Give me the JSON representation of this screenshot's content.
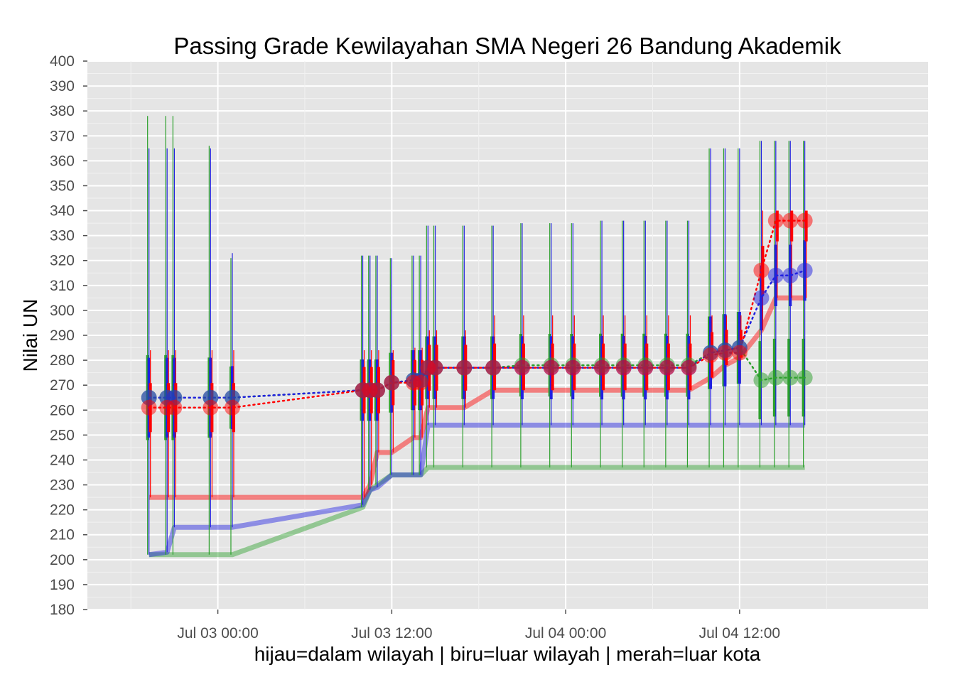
{
  "chart_data": {
    "type": "line",
    "title": "Passing Grade Kewilayahan SMA Negeri 26 Bandung Akademik",
    "xlabel": "hijau=dalam wilayah | biru=luar wilayah | merah=luar kota",
    "ylabel": "Nilai UN",
    "ylim": [
      180,
      400
    ],
    "y_ticks": [
      180,
      190,
      200,
      210,
      220,
      230,
      240,
      250,
      260,
      270,
      280,
      290,
      300,
      310,
      320,
      330,
      340,
      350,
      360,
      370,
      380,
      390,
      400
    ],
    "xlim": [
      "2014-07-02 15:00",
      "2014-07-05 01:00"
    ],
    "x_ticks": [
      "Jul 03 00:00",
      "Jul 03 12:00",
      "Jul 04 00:00",
      "Jul 04 12:00"
    ],
    "grid": true,
    "background": "#e5e5e5",
    "colors": {
      "dalam": "#2ca02c",
      "luar_wilayah": "#2020e0",
      "luar_kota": "#ff0000"
    },
    "series": [
      {
        "name": "hijau=dalam wilayah",
        "color": "#2ca02c",
        "x": [
          "2014-07-02 19:15",
          "2014-07-02 20:30",
          "2014-07-02 21:00",
          "2014-07-02 23:30",
          "2014-07-03 01:00",
          "2014-07-03 10:00",
          "2014-07-03 10:30",
          "2014-07-03 11:00",
          "2014-07-03 12:00",
          "2014-07-03 13:30",
          "2014-07-03 14:00",
          "2014-07-03 14:30",
          "2014-07-03 15:00",
          "2014-07-03 17:00",
          "2014-07-03 19:00",
          "2014-07-03 21:00",
          "2014-07-03 23:00",
          "2014-07-04 00:30",
          "2014-07-04 02:30",
          "2014-07-04 04:00",
          "2014-07-04 05:30",
          "2014-07-04 07:00",
          "2014-07-04 08:30",
          "2014-07-04 10:00",
          "2014-07-04 11:00",
          "2014-07-04 12:00",
          "2014-07-04 13:30",
          "2014-07-04 14:30",
          "2014-07-04 15:30",
          "2014-07-04 16:30"
        ],
        "min": [
          202,
          202,
          202,
          202,
          202,
          221,
          228,
          230,
          234,
          234,
          234,
          237,
          237,
          237,
          237,
          237,
          237,
          237,
          237,
          237,
          237,
          237,
          237,
          237,
          237,
          237,
          237,
          237,
          237,
          237
        ],
        "avg": [
          265,
          265,
          265,
          265,
          265,
          268,
          268,
          268,
          271,
          272,
          272,
          277,
          277,
          277,
          277,
          278,
          278,
          278,
          278,
          278,
          278,
          278,
          278,
          283,
          284,
          285,
          272,
          273,
          273,
          273
        ],
        "max": [
          378,
          378,
          378,
          366,
          321,
          322,
          322,
          322,
          321,
          322,
          322,
          334,
          334,
          334,
          334,
          335,
          335,
          335,
          336,
          336,
          336,
          336,
          336,
          365,
          365,
          365,
          368,
          368,
          368,
          368
        ]
      },
      {
        "name": "biru=luar wilayah",
        "color": "#2020e0",
        "x": [
          "2014-07-02 19:15",
          "2014-07-02 20:30",
          "2014-07-02 21:00",
          "2014-07-02 23:30",
          "2014-07-03 01:00",
          "2014-07-03 10:00",
          "2014-07-03 10:30",
          "2014-07-03 11:00",
          "2014-07-03 12:00",
          "2014-07-03 13:30",
          "2014-07-03 14:00",
          "2014-07-03 14:30",
          "2014-07-03 15:00",
          "2014-07-03 17:00",
          "2014-07-03 19:00",
          "2014-07-03 21:00",
          "2014-07-03 23:00",
          "2014-07-04 00:30",
          "2014-07-04 02:30",
          "2014-07-04 04:00",
          "2014-07-04 05:30",
          "2014-07-04 07:00",
          "2014-07-04 08:30",
          "2014-07-04 10:00",
          "2014-07-04 11:00",
          "2014-07-04 12:00",
          "2014-07-04 13:30",
          "2014-07-04 14:30",
          "2014-07-04 15:30",
          "2014-07-04 16:30"
        ],
        "min": [
          202,
          203,
          213,
          213,
          213,
          222,
          228,
          229,
          234,
          234,
          234,
          254,
          254,
          254,
          254,
          254,
          254,
          254,
          254,
          254,
          254,
          254,
          254,
          254,
          254,
          254,
          254,
          254,
          254,
          254
        ],
        "avg": [
          265,
          265,
          265,
          265,
          265,
          268,
          268,
          268,
          271,
          272,
          272,
          277,
          277,
          277,
          277,
          277,
          277,
          277,
          277,
          277,
          277,
          277,
          277,
          283,
          284,
          285,
          305,
          314,
          314,
          316
        ],
        "max": [
          365,
          365,
          365,
          365,
          323,
          322,
          322,
          322,
          321,
          322,
          322,
          334,
          334,
          334,
          334,
          335,
          335,
          335,
          336,
          336,
          336,
          336,
          336,
          365,
          365,
          365,
          368,
          368,
          368,
          368
        ]
      },
      {
        "name": "merah=luar kota",
        "color": "#ff0000",
        "x": [
          "2014-07-02 19:15",
          "2014-07-02 20:30",
          "2014-07-02 21:00",
          "2014-07-02 23:30",
          "2014-07-03 01:00",
          "2014-07-03 10:00",
          "2014-07-03 10:30",
          "2014-07-03 11:00",
          "2014-07-03 12:00",
          "2014-07-03 13:30",
          "2014-07-03 14:00",
          "2014-07-03 14:30",
          "2014-07-03 15:00",
          "2014-07-03 17:00",
          "2014-07-03 19:00",
          "2014-07-03 21:00",
          "2014-07-03 23:00",
          "2014-07-04 00:30",
          "2014-07-04 02:30",
          "2014-07-04 04:00",
          "2014-07-04 05:30",
          "2014-07-04 07:00",
          "2014-07-04 08:30",
          "2014-07-04 10:00",
          "2014-07-04 11:00",
          "2014-07-04 12:00",
          "2014-07-04 13:30",
          "2014-07-04 14:30",
          "2014-07-04 15:30",
          "2014-07-04 16:30"
        ],
        "min": [
          225,
          225,
          225,
          225,
          225,
          225,
          230,
          243,
          243,
          249,
          249,
          261,
          261,
          261,
          268,
          268,
          268,
          268,
          268,
          268,
          268,
          268,
          268,
          273,
          278,
          281,
          292,
          305,
          305,
          305
        ],
        "avg": [
          261,
          261,
          261,
          261,
          261,
          268,
          268,
          268,
          271,
          271,
          271,
          277,
          277,
          277,
          277,
          277,
          277,
          277,
          277,
          277,
          277,
          277,
          277,
          282,
          283,
          283,
          316,
          336,
          336,
          336
        ],
        "max": [
          284,
          284,
          284,
          284,
          284,
          284,
          284,
          284,
          284,
          285,
          285,
          292,
          292,
          292,
          298,
          298,
          298,
          298,
          298,
          298,
          298,
          298,
          298,
          298,
          298,
          298,
          340,
          340,
          340,
          340
        ]
      }
    ]
  }
}
